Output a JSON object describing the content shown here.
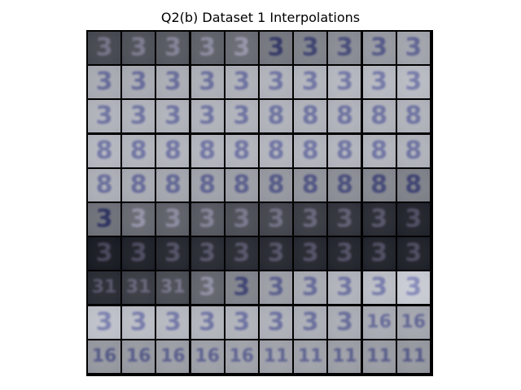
{
  "title": "Q2(b) Dataset 1 Interpolations",
  "grid": {
    "rows": 10,
    "cols": 10,
    "tile_shades": [
      [
        72,
        80,
        88,
        96,
        106,
        118,
        128,
        138,
        150,
        162
      ],
      [
        168,
        168,
        170,
        172,
        174,
        176,
        178,
        180,
        182,
        184
      ],
      [
        176,
        176,
        176,
        176,
        176,
        176,
        176,
        176,
        176,
        176
      ],
      [
        180,
        178,
        178,
        178,
        178,
        178,
        178,
        178,
        178,
        176
      ],
      [
        172,
        168,
        164,
        160,
        156,
        150,
        146,
        140,
        134,
        128
      ],
      [
        112,
        104,
        96,
        88,
        78,
        70,
        60,
        52,
        44,
        36
      ],
      [
        28,
        34,
        40,
        44,
        44,
        42,
        40,
        38,
        36,
        34
      ],
      [
        44,
        60,
        76,
        100,
        130,
        156,
        168,
        176,
        186,
        200
      ],
      [
        190,
        186,
        182,
        178,
        176,
        174,
        172,
        170,
        168,
        164
      ],
      [
        150,
        152,
        156,
        158,
        160,
        160,
        160,
        156,
        154,
        150
      ]
    ],
    "tile_digits": [
      [
        "3",
        "3",
        "3",
        "3",
        "3",
        "3",
        "3",
        "3",
        "3",
        "3"
      ],
      [
        "3",
        "3",
        "3",
        "3",
        "3",
        "3",
        "3",
        "3",
        "3",
        "3"
      ],
      [
        "3",
        "3",
        "3",
        "3",
        "3",
        "8",
        "8",
        "8",
        "8",
        "8"
      ],
      [
        "8",
        "8",
        "8",
        "8",
        "8",
        "8",
        "8",
        "8",
        "8",
        "8"
      ],
      [
        "8",
        "8",
        "8",
        "8",
        "8",
        "8",
        "8",
        "8",
        "8",
        "8"
      ],
      [
        "3",
        "3",
        "3",
        "3",
        "3",
        "3",
        "3",
        "3",
        "3",
        "3"
      ],
      [
        "3",
        "3",
        "3",
        "3",
        "3",
        "3",
        "3",
        "3",
        "3",
        "3"
      ],
      [
        "31",
        "31",
        "31",
        "3",
        "3",
        "3",
        "3",
        "3",
        "3",
        "3"
      ],
      [
        "3",
        "3",
        "3",
        "3",
        "3",
        "3",
        "3",
        "3",
        "16",
        "16"
      ],
      [
        "16",
        "16",
        "16",
        "16",
        "16",
        "11",
        "11",
        "11",
        "11",
        "11"
      ]
    ]
  }
}
